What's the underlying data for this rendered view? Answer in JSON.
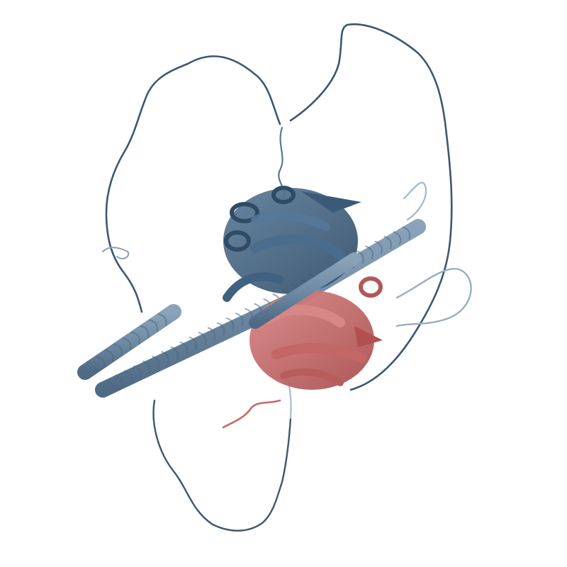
{
  "image": {
    "kind": "protein-structure-cartoon",
    "background": "#ffffff",
    "chains": [
      {
        "name": "chain-a",
        "color": "#3f6282",
        "style": "cartoon"
      },
      {
        "name": "chain-b",
        "color": "#c96a6a",
        "style": "cartoon"
      }
    ],
    "loop_color_far": "#9ab0c2",
    "loop_color_near": "#2e4a63"
  }
}
